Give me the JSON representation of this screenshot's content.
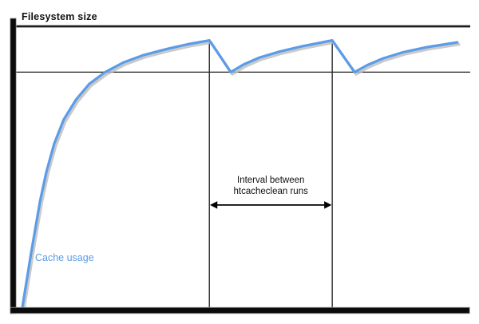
{
  "labels": {
    "filesystem_size": "Filesystem size",
    "cache_usage": "Cache usage",
    "interval_line1": "Interval between",
    "interval_line2": "htcacheclean runs"
  },
  "colors": {
    "curve": "#5b9ce8",
    "curve_shadow": "#bdbdbd",
    "axis": "#0b0b0b",
    "line": "#1c1c1c",
    "text": "#111111",
    "background": "#ffffff"
  },
  "chart_data": {
    "type": "line",
    "title": "",
    "xlabel": "",
    "ylabel": "Filesystem size",
    "x_axis": {
      "range": [
        0,
        1
      ],
      "tick_labels": []
    },
    "y_axis": {
      "range": [
        0,
        1
      ],
      "tick_labels": []
    },
    "grid": false,
    "legend_position": "none",
    "reference_lines": [
      {
        "name": "Filesystem size",
        "y": 1.0
      },
      {
        "name": "unlabeled cache limit",
        "y": 0.837
      }
    ],
    "events": {
      "name": "htcacheclean runs",
      "x": [
        0.425,
        0.695
      ]
    },
    "annotations": [
      {
        "text": "Interval between htcacheclean runs",
        "x_span": [
          0.425,
          0.695
        ],
        "y": 0.364
      }
    ],
    "series": [
      {
        "name": "Cache usage",
        "color": "#5b9ce8",
        "points": [
          [
            0.014,
            0.0
          ],
          [
            0.033,
            0.19
          ],
          [
            0.053,
            0.378
          ],
          [
            0.067,
            0.483
          ],
          [
            0.084,
            0.582
          ],
          [
            0.105,
            0.668
          ],
          [
            0.132,
            0.739
          ],
          [
            0.161,
            0.795
          ],
          [
            0.196,
            0.837
          ],
          [
            0.237,
            0.872
          ],
          [
            0.281,
            0.898
          ],
          [
            0.333,
            0.92
          ],
          [
            0.377,
            0.936
          ],
          [
            0.425,
            0.95
          ],
          [
            0.472,
            0.837
          ],
          [
            0.5,
            0.864
          ],
          [
            0.535,
            0.889
          ],
          [
            0.579,
            0.91
          ],
          [
            0.632,
            0.93
          ],
          [
            0.695,
            0.95
          ],
          [
            0.744,
            0.837
          ],
          [
            0.772,
            0.862
          ],
          [
            0.807,
            0.886
          ],
          [
            0.851,
            0.908
          ],
          [
            0.904,
            0.926
          ],
          [
            0.97,
            0.943
          ]
        ]
      }
    ]
  }
}
